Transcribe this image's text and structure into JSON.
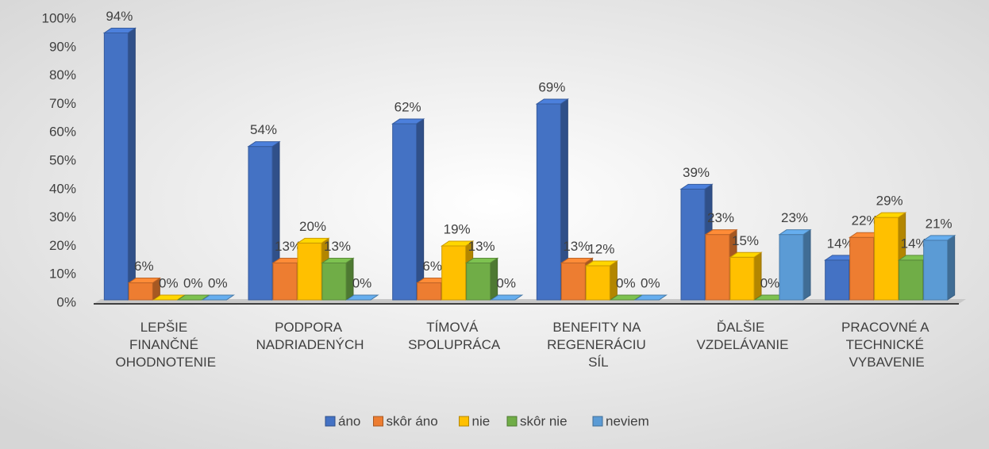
{
  "chart_data": {
    "type": "bar3d",
    "categories": [
      "LEPŠIE FINANČNÉ OHODNOTENIE",
      "PODPORA NADRIADENÝCH",
      "TÍMOVÁ SPOLUPRÁCA",
      "BENEFITY NA REGENERÁCIU SÍL",
      "ĎALŠIE VZDELÁVANIE",
      "PRACOVNÉ A TECHNICKÉ VYBAVENIE"
    ],
    "series": [
      {
        "name": "áno",
        "color": "#4472c4",
        "values": [
          94,
          54,
          62,
          69,
          39,
          14
        ],
        "value_labels": [
          "94%",
          "54%",
          "62%",
          "69%",
          "39%",
          "14%"
        ]
      },
      {
        "name": "skôr áno",
        "color": "#ed7d31",
        "values": [
          6,
          13,
          6,
          13,
          23,
          22
        ],
        "value_labels": [
          "6%",
          "13%",
          "6%",
          "13%",
          "23%",
          "22%"
        ]
      },
      {
        "name": "nie",
        "color": "#ffc000",
        "values": [
          0,
          20,
          19,
          12,
          15,
          29
        ],
        "value_labels": [
          "0%",
          "20%",
          "19%",
          "12%",
          "15%",
          "29%"
        ]
      },
      {
        "name": "skôr nie",
        "color": "#70ad47",
        "values": [
          0,
          13,
          13,
          0,
          0,
          14
        ],
        "value_labels": [
          "0%",
          "13%",
          "13%",
          "0%",
          "0%",
          "14%"
        ]
      },
      {
        "name": "neviem",
        "color": "#5b9bd5",
        "values": [
          0,
          0,
          0,
          0,
          23,
          21
        ],
        "value_labels": [
          "0%",
          "0%",
          "0%",
          "0%",
          "23%",
          "21%"
        ]
      }
    ],
    "ylim": [
      0,
      100
    ],
    "yticks": [
      {
        "value": 0,
        "label": "0%"
      },
      {
        "value": 10,
        "label": "10%"
      },
      {
        "value": 20,
        "label": "20%"
      },
      {
        "value": 30,
        "label": "30%"
      },
      {
        "value": 40,
        "label": "40%"
      },
      {
        "value": 50,
        "label": "50%"
      },
      {
        "value": 60,
        "label": "60%"
      },
      {
        "value": 70,
        "label": "70%"
      },
      {
        "value": 80,
        "label": "80%"
      },
      {
        "value": 90,
        "label": "90%"
      },
      {
        "value": 100,
        "label": "100%"
      }
    ],
    "legend": "bottom"
  }
}
